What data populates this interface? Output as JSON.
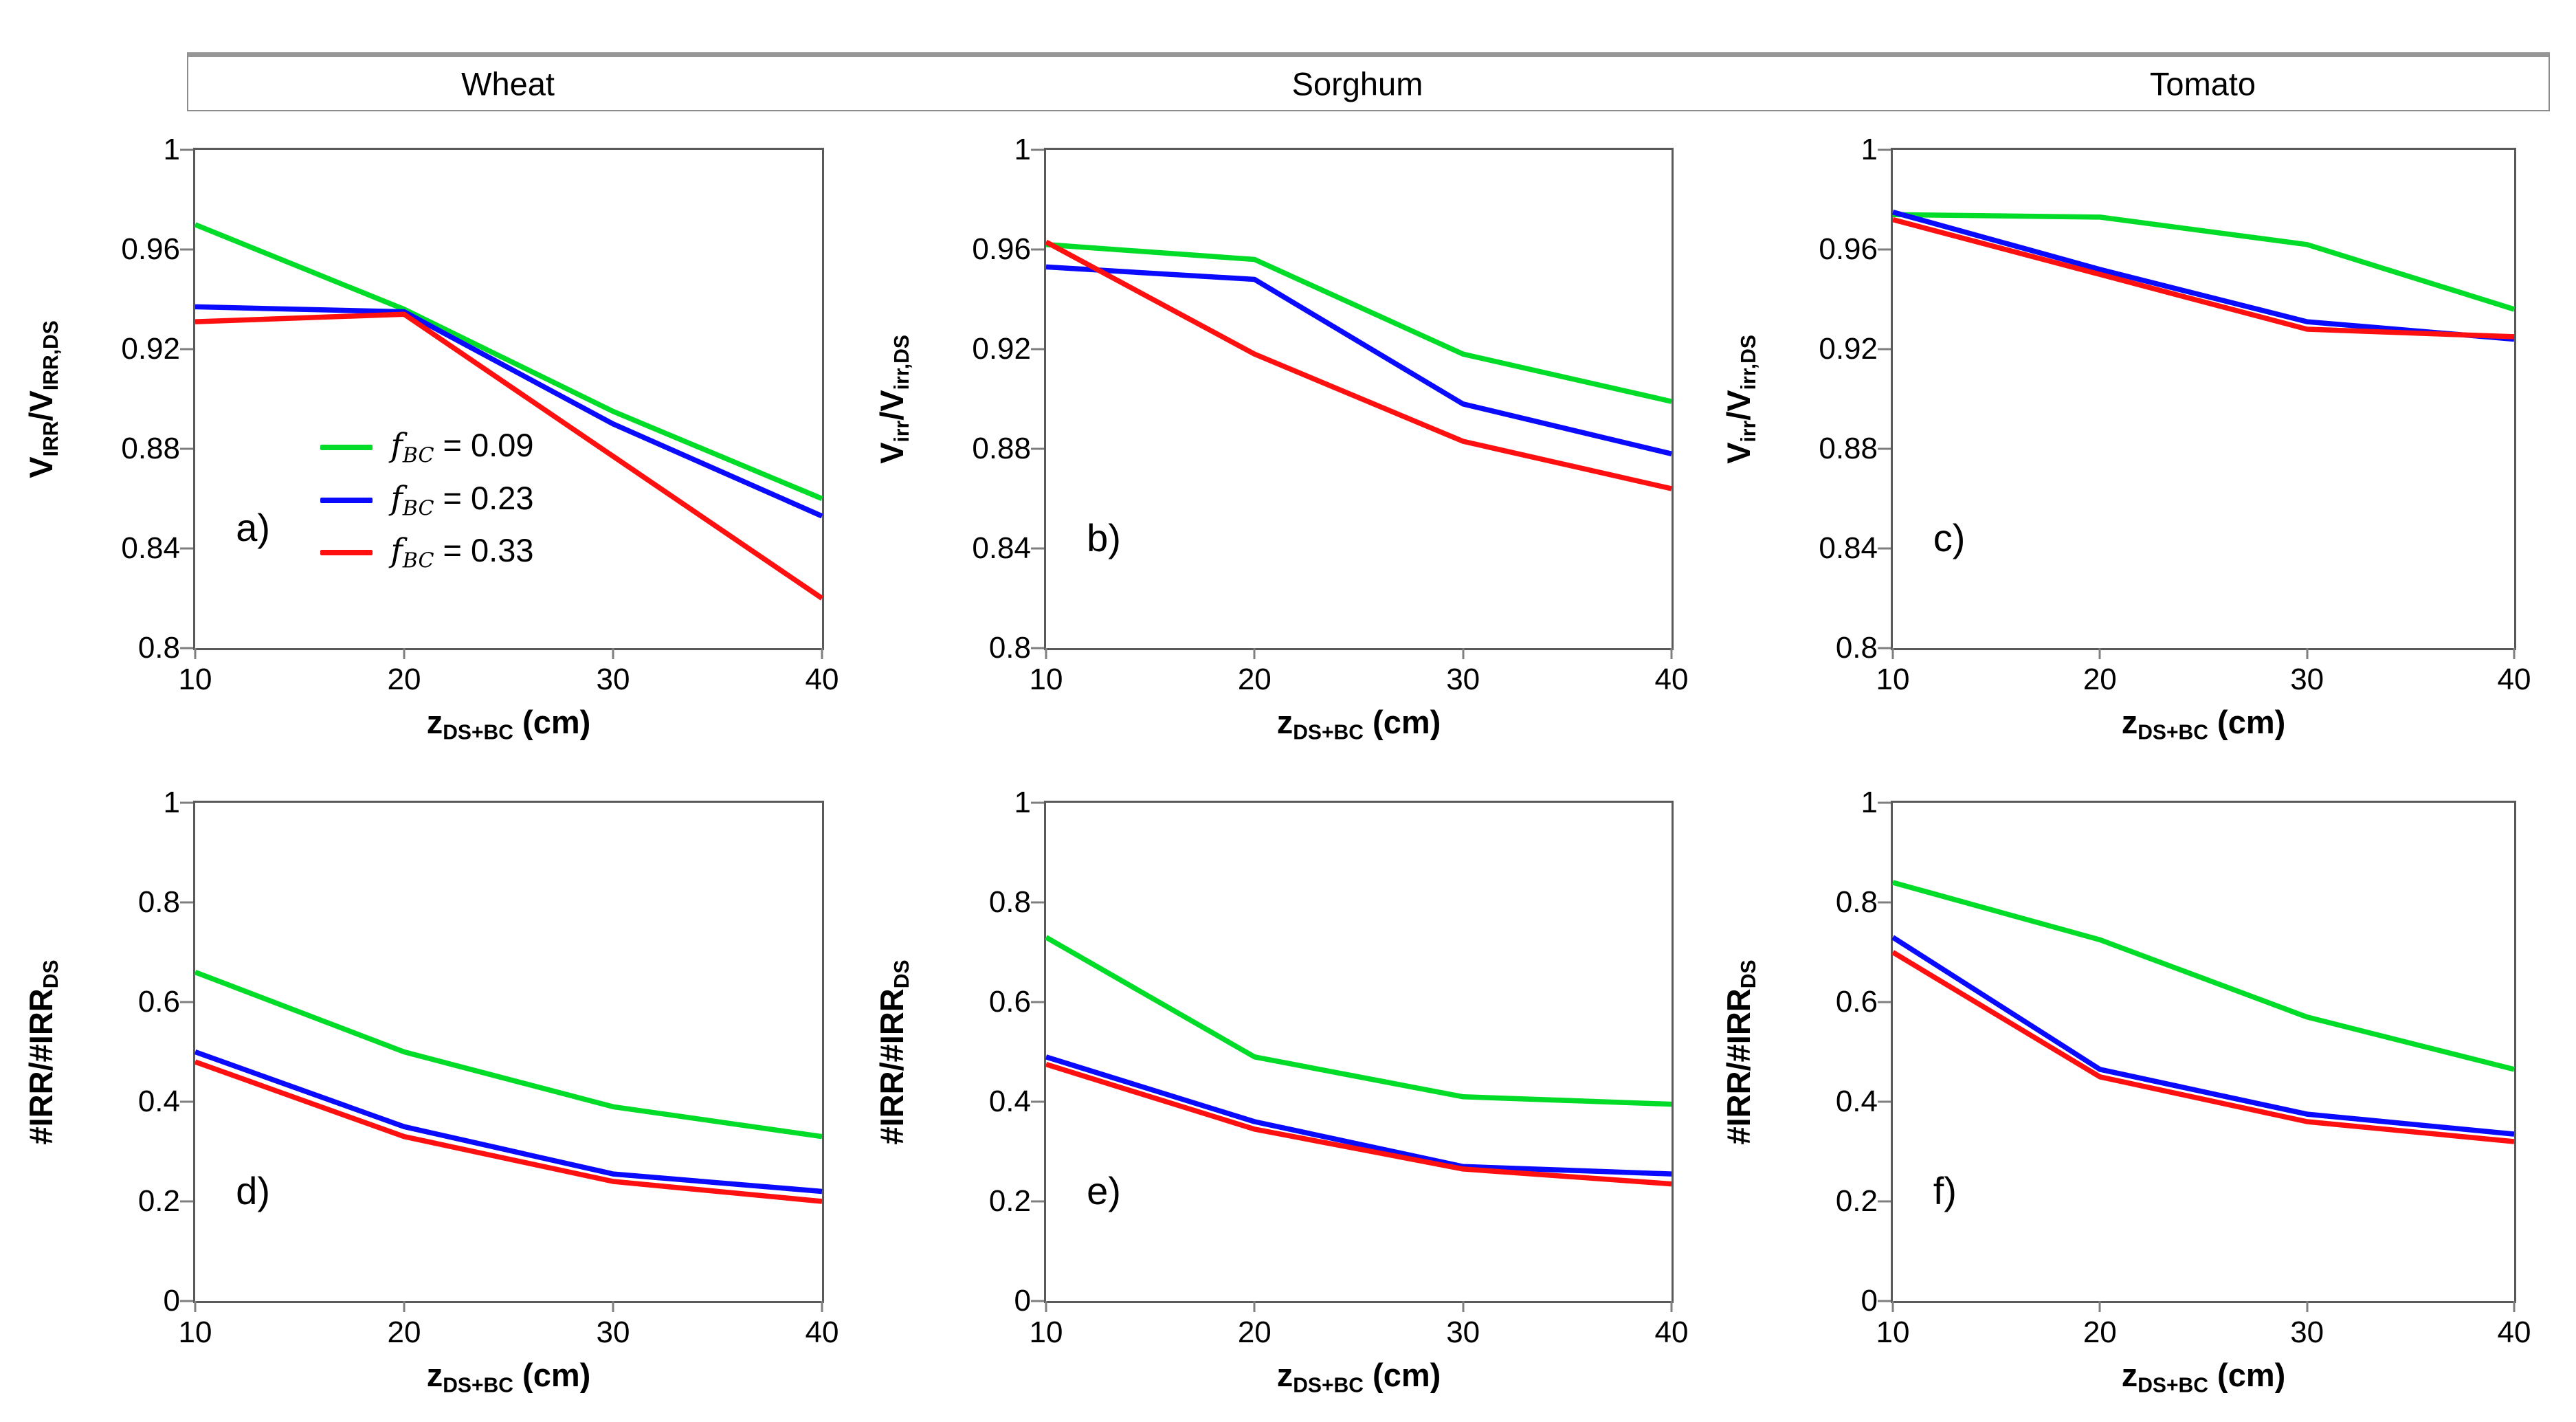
{
  "figure": {
    "background": "#ffffff",
    "axis_frame_color": "#595959",
    "tick_color": "#7f7f7f",
    "text_color": "#000000"
  },
  "header": {
    "columns": [
      {
        "label": "Wheat"
      },
      {
        "label": "Sorghum"
      },
      {
        "label": "Tomato"
      }
    ]
  },
  "colors": {
    "green": "#00dc28",
    "blue": "#0a0aff",
    "red": "#ff1010"
  },
  "axis": {
    "x_title": "z_DS+BC (cm)",
    "x_title_parts": [
      {
        "t": "z"
      },
      {
        "t": "DS+BC",
        "sub": true
      },
      {
        "t": " (cm)"
      }
    ]
  },
  "legend": {
    "items": [
      {
        "color": "green",
        "text": "f_BC = 0.09",
        "parts": [
          {
            "t": "f",
            "i": true
          },
          {
            "t": "BC",
            "i": true,
            "sub": true
          },
          {
            "t": " = 0.09"
          }
        ]
      },
      {
        "color": "blue",
        "text": "f_BC = 0.23",
        "parts": [
          {
            "t": "f",
            "i": true
          },
          {
            "t": "BC",
            "i": true,
            "sub": true
          },
          {
            "t": " = 0.23"
          }
        ]
      },
      {
        "color": "red",
        "text": "f_BC = 0.33",
        "parts": [
          {
            "t": "f",
            "i": true
          },
          {
            "t": "BC",
            "i": true,
            "sub": true
          },
          {
            "t": " = 0.33"
          }
        ]
      }
    ]
  },
  "chart_data": [
    {
      "type": "line",
      "panel_label": "a)",
      "crop": "Wheat",
      "ylabel": "V_IRR/V_IRR,DS",
      "ylabel_parts": [
        {
          "t": "V"
        },
        {
          "t": "IRR",
          "sub": true
        },
        {
          "t": "/V"
        },
        {
          "t": "IRR,DS",
          "sub": true
        }
      ],
      "xlabel": "z_DS+BC (cm)",
      "x": [
        10,
        20,
        30,
        40
      ],
      "xlim": [
        10,
        40
      ],
      "ylim": [
        0.8,
        1
      ],
      "xticks": [
        10,
        20,
        30,
        40
      ],
      "yticks": [
        1,
        0.96,
        0.92,
        0.88,
        0.84,
        0.8
      ],
      "ytick_labels": [
        "1",
        "0.96",
        "0.92",
        "0.88",
        "0.84",
        "0.8"
      ],
      "series": [
        {
          "name": "f_BC = 0.09",
          "color": "green",
          "values": [
            0.97,
            0.936,
            0.895,
            0.86
          ]
        },
        {
          "name": "f_BC = 0.23",
          "color": "blue",
          "values": [
            0.937,
            0.935,
            0.89,
            0.853
          ]
        },
        {
          "name": "f_BC = 0.33",
          "color": "red",
          "values": [
            0.931,
            0.934,
            0.877,
            0.82
          ]
        }
      ]
    },
    {
      "type": "line",
      "panel_label": "b)",
      "crop": "Sorghum",
      "ylabel": "V_irr/V_irr,DS",
      "ylabel_parts": [
        {
          "t": "V"
        },
        {
          "t": "irr",
          "sub": true
        },
        {
          "t": "/V"
        },
        {
          "t": "irr,DS",
          "sub": true
        }
      ],
      "xlabel": "z_DS+BC (cm)",
      "x": [
        10,
        20,
        30,
        40
      ],
      "xlim": [
        10,
        40
      ],
      "ylim": [
        0.8,
        1
      ],
      "xticks": [
        10,
        20,
        30,
        40
      ],
      "yticks": [
        1,
        0.96,
        0.92,
        0.88,
        0.84,
        0.8
      ],
      "ytick_labels": [
        "1",
        "0.96",
        "0.92",
        "0.88",
        "0.84",
        "0.8"
      ],
      "series": [
        {
          "name": "f_BC = 0.09",
          "color": "green",
          "values": [
            0.962,
            0.956,
            0.918,
            0.899
          ]
        },
        {
          "name": "f_BC = 0.23",
          "color": "blue",
          "values": [
            0.953,
            0.948,
            0.898,
            0.878
          ]
        },
        {
          "name": "f_BC = 0.33",
          "color": "red",
          "values": [
            0.963,
            0.918,
            0.883,
            0.864
          ]
        }
      ]
    },
    {
      "type": "line",
      "panel_label": "c)",
      "crop": "Tomato",
      "ylabel": "V_irr/V_irr,DS",
      "ylabel_parts": [
        {
          "t": "V"
        },
        {
          "t": "irr",
          "sub": true
        },
        {
          "t": "/V"
        },
        {
          "t": "irr,DS",
          "sub": true
        }
      ],
      "xlabel": "z_DS+BC (cm)",
      "x": [
        10,
        20,
        30,
        40
      ],
      "xlim": [
        10,
        40
      ],
      "ylim": [
        0.8,
        1
      ],
      "xticks": [
        10,
        20,
        30,
        40
      ],
      "yticks": [
        1,
        0.96,
        0.92,
        0.88,
        0.84,
        0.8
      ],
      "ytick_labels": [
        "1",
        "0.96",
        "0.92",
        "0.88",
        "0.84",
        "0.8"
      ],
      "series": [
        {
          "name": "f_BC = 0.09",
          "color": "green",
          "values": [
            0.974,
            0.973,
            0.962,
            0.936
          ]
        },
        {
          "name": "f_BC = 0.23",
          "color": "blue",
          "values": [
            0.975,
            0.952,
            0.931,
            0.924
          ]
        },
        {
          "name": "f_BC = 0.33",
          "color": "red",
          "values": [
            0.972,
            0.95,
            0.928,
            0.925
          ]
        }
      ]
    },
    {
      "type": "line",
      "panel_label": "d)",
      "crop": "Wheat",
      "ylabel": "#IRR/#IRR_DS",
      "ylabel_parts": [
        {
          "t": "#IRR/#IRR"
        },
        {
          "t": "DS",
          "sub": true
        }
      ],
      "xlabel": "z_DS+BC (cm)",
      "x": [
        10,
        20,
        30,
        40
      ],
      "xlim": [
        10,
        40
      ],
      "ylim": [
        0,
        1
      ],
      "xticks": [
        10,
        20,
        30,
        40
      ],
      "yticks": [
        1,
        0.8,
        0.6,
        0.4,
        0.2,
        0
      ],
      "ytick_labels": [
        "1",
        "0.8",
        "0.6",
        "0.4",
        "0.2",
        "0"
      ],
      "series": [
        {
          "name": "f_BC = 0.09",
          "color": "green",
          "values": [
            0.66,
            0.5,
            0.39,
            0.33
          ]
        },
        {
          "name": "f_BC = 0.23",
          "color": "blue",
          "values": [
            0.5,
            0.35,
            0.255,
            0.22
          ]
        },
        {
          "name": "f_BC = 0.33",
          "color": "red",
          "values": [
            0.48,
            0.33,
            0.24,
            0.2
          ]
        }
      ]
    },
    {
      "type": "line",
      "panel_label": "e)",
      "crop": "Sorghum",
      "ylabel": "#IRR/#IRR_DS",
      "ylabel_parts": [
        {
          "t": "#IRR/#IRR"
        },
        {
          "t": "DS",
          "sub": true
        }
      ],
      "xlabel": "z_DS+BC (cm)",
      "x": [
        10,
        20,
        30,
        40
      ],
      "xlim": [
        10,
        40
      ],
      "ylim": [
        0,
        1
      ],
      "xticks": [
        10,
        20,
        30,
        40
      ],
      "yticks": [
        1,
        0.8,
        0.6,
        0.4,
        0.2,
        0
      ],
      "ytick_labels": [
        "1",
        "0.8",
        "0.6",
        "0.4",
        "0.2",
        "0"
      ],
      "series": [
        {
          "name": "f_BC = 0.09",
          "color": "green",
          "values": [
            0.73,
            0.49,
            0.41,
            0.395
          ]
        },
        {
          "name": "f_BC = 0.23",
          "color": "blue",
          "values": [
            0.49,
            0.36,
            0.27,
            0.255
          ]
        },
        {
          "name": "f_BC = 0.33",
          "color": "red",
          "values": [
            0.475,
            0.345,
            0.265,
            0.235
          ]
        }
      ]
    },
    {
      "type": "line",
      "panel_label": "f)",
      "crop": "Tomato",
      "ylabel": "#IRR/#IRR_DS",
      "ylabel_parts": [
        {
          "t": "#IRR/#IRR"
        },
        {
          "t": "DS",
          "sub": true
        }
      ],
      "xlabel": "z_DS+BC (cm)",
      "x": [
        10,
        20,
        30,
        40
      ],
      "xlim": [
        10,
        40
      ],
      "ylim": [
        0,
        1
      ],
      "xticks": [
        10,
        20,
        30,
        40
      ],
      "yticks": [
        1,
        0.8,
        0.6,
        0.4,
        0.2,
        0
      ],
      "ytick_labels": [
        "1",
        "0.8",
        "0.6",
        "0.4",
        "0.2",
        "0"
      ],
      "series": [
        {
          "name": "f_BC = 0.09",
          "color": "green",
          "values": [
            0.84,
            0.725,
            0.57,
            0.465
          ]
        },
        {
          "name": "f_BC = 0.23",
          "color": "blue",
          "values": [
            0.73,
            0.465,
            0.375,
            0.335
          ]
        },
        {
          "name": "f_BC = 0.33",
          "color": "red",
          "values": [
            0.7,
            0.45,
            0.36,
            0.32
          ]
        }
      ]
    }
  ]
}
